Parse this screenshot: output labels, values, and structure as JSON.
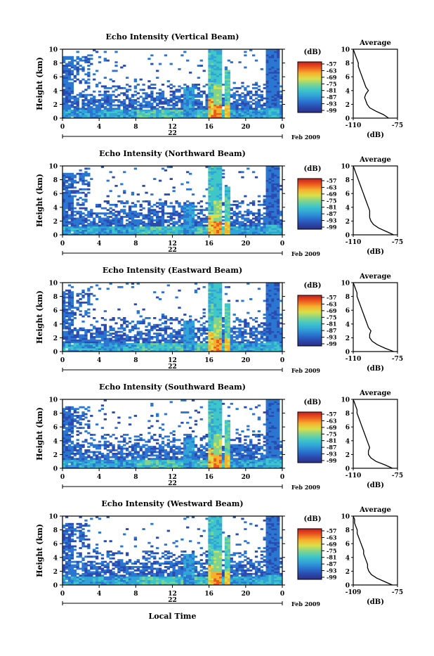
{
  "colors": {
    "colorbar_stops": [
      "#2d2f84",
      "#2b4bb0",
      "#2a76d0",
      "#31a3d7",
      "#3fc6c9",
      "#7fd48f",
      "#d8e04b",
      "#f5b02c",
      "#ec5a1e",
      "#c81c1c"
    ],
    "axis": "#000000",
    "background": "#ffffff"
  },
  "x_axis": {
    "ticks": [
      "0",
      "4",
      "8",
      "12",
      "16",
      "20",
      "0"
    ],
    "date_day": "22",
    "date_month_year": "Feb 2009",
    "label": "Local Time"
  },
  "y_axis": {
    "ticks": [
      "0",
      "2",
      "4",
      "6",
      "8",
      "10"
    ],
    "label": "Height (km)"
  },
  "colorbar": {
    "unit": "(dB)",
    "ticks": [
      "-57",
      "-63",
      "-69",
      "-75",
      "-81",
      "-87",
      "-93",
      "-99"
    ]
  },
  "average_panel": {
    "title": "Average",
    "unit": "(dB)"
  },
  "chart_data": [
    {
      "type": "heatmap",
      "title": "Echo Intensity (Vertical Beam)",
      "xlabel": "",
      "ylabel": "Height (km)",
      "x_range_hours": [
        0,
        24
      ],
      "y_range_km": [
        0,
        10
      ],
      "colorbar_range_db": [
        -99,
        -57
      ],
      "average_profile": {
        "xlim_db": [
          -110,
          -75
        ],
        "xticks": [
          "-110",
          "-75"
        ],
        "height_km": [
          0,
          0.5,
          1,
          1.5,
          2,
          2.5,
          3,
          3.5,
          4,
          4.5,
          5,
          5.5,
          6,
          6.5,
          7,
          7.5,
          8,
          8.5,
          9,
          9.5,
          10
        ],
        "value_db": [
          -82,
          -86,
          -92,
          -97,
          -99,
          -100,
          -101,
          -100,
          -98,
          -100,
          -101,
          -102,
          -103,
          -104,
          -105,
          -106,
          -106,
          -107,
          -108,
          -109,
          -110
        ]
      }
    },
    {
      "type": "heatmap",
      "title": "Echo Intensity (Northward Beam)",
      "xlabel": "",
      "ylabel": "Height (km)",
      "x_range_hours": [
        0,
        24
      ],
      "y_range_km": [
        0,
        10
      ],
      "colorbar_range_db": [
        -99,
        -57
      ],
      "average_profile": {
        "xlim_db": [
          -110,
          -75
        ],
        "xticks": [
          "-110",
          "-75"
        ],
        "height_km": [
          0,
          0.5,
          1,
          1.5,
          2,
          2.5,
          3,
          3.5,
          4,
          4.5,
          5,
          5.5,
          6,
          6.5,
          7,
          7.5,
          8,
          8.5,
          9,
          9.5,
          10
        ],
        "value_db": [
          -78,
          -84,
          -90,
          -94,
          -96,
          -97,
          -97,
          -97,
          -98,
          -99,
          -100,
          -101,
          -102,
          -103,
          -104,
          -105,
          -106,
          -107,
          -108,
          -109,
          -110
        ]
      }
    },
    {
      "type": "heatmap",
      "title": "Echo Intensity (Eastward Beam)",
      "xlabel": "",
      "ylabel": "Height (km)",
      "x_range_hours": [
        0,
        24
      ],
      "y_range_km": [
        0,
        10
      ],
      "colorbar_range_db": [
        -99,
        -57
      ],
      "average_profile": {
        "xlim_db": [
          -110,
          -75
        ],
        "xticks": [
          "-110",
          "-75"
        ],
        "height_km": [
          0,
          0.5,
          1,
          1.5,
          2,
          2.5,
          3,
          3.5,
          4,
          4.5,
          5,
          5.5,
          6,
          6.5,
          7,
          7.5,
          8,
          8.5,
          9,
          9.5,
          10
        ],
        "value_db": [
          -78,
          -85,
          -91,
          -95,
          -97,
          -97,
          -96,
          -98,
          -99,
          -100,
          -101,
          -102,
          -103,
          -104,
          -105,
          -106,
          -107,
          -107,
          -108,
          -109,
          -110
        ]
      }
    },
    {
      "type": "heatmap",
      "title": "Echo Intensity (Southward Beam)",
      "xlabel": "",
      "ylabel": "Height (km)",
      "x_range_hours": [
        0,
        24
      ],
      "y_range_km": [
        0,
        10
      ],
      "colorbar_range_db": [
        -99,
        -57
      ],
      "average_profile": {
        "xlim_db": [
          -110,
          -75
        ],
        "xticks": [
          "-110",
          "-75"
        ],
        "height_km": [
          0,
          0.5,
          1,
          1.5,
          2,
          2.5,
          3,
          3.5,
          4,
          4.5,
          5,
          5.5,
          6,
          6.5,
          7,
          7.5,
          8,
          8.5,
          9,
          9.5,
          10
        ],
        "value_db": [
          -79,
          -85,
          -92,
          -96,
          -98,
          -98,
          -97,
          -98,
          -99,
          -100,
          -101,
          -102,
          -103,
          -104,
          -105,
          -106,
          -107,
          -107,
          -108,
          -109,
          -110
        ]
      }
    },
    {
      "type": "heatmap",
      "title": "Echo Intensity (Westward Beam)",
      "xlabel": "Local Time",
      "ylabel": "Height (km)",
      "x_range_hours": [
        0,
        24
      ],
      "y_range_km": [
        0,
        10
      ],
      "colorbar_range_db": [
        -99,
        -57
      ],
      "average_profile": {
        "xlim_db": [
          -109,
          -75
        ],
        "xticks": [
          "-109",
          "-75"
        ],
        "height_km": [
          0,
          0.5,
          1,
          1.5,
          2,
          2.5,
          3,
          3.5,
          4,
          4.5,
          5,
          5.5,
          6,
          6.5,
          7,
          7.5,
          8,
          8.5,
          9,
          9.5,
          10
        ],
        "value_db": [
          -79,
          -85,
          -91,
          -95,
          -97,
          -98,
          -98,
          -99,
          -100,
          -101,
          -101,
          -102,
          -103,
          -104,
          -105,
          -106,
          -106,
          -107,
          -108,
          -108,
          -109
        ]
      }
    }
  ]
}
